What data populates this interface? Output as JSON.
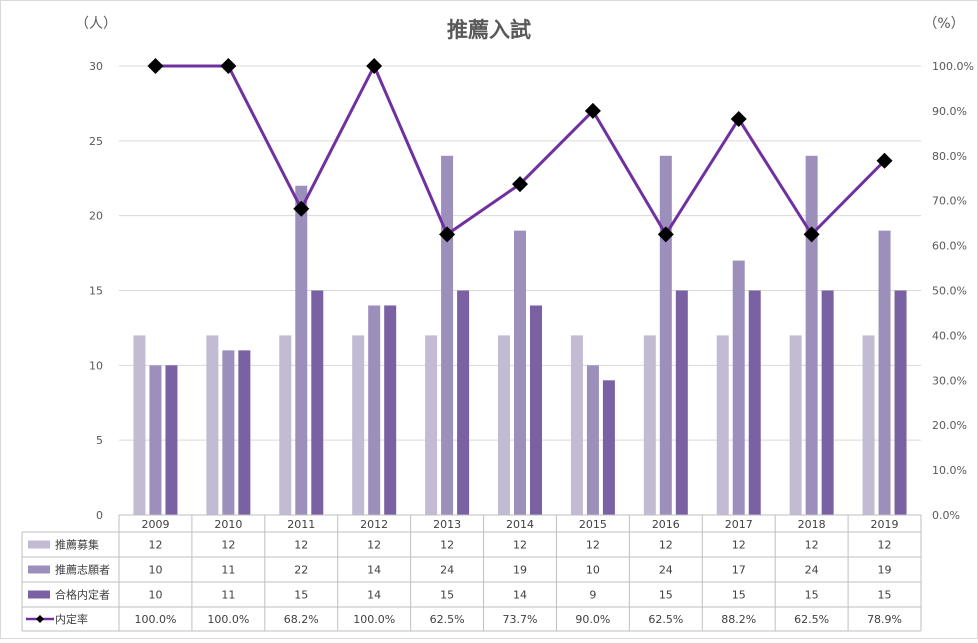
{
  "chart_data": {
    "type": "bar",
    "title": "推薦入試",
    "left_axis_unit": "（人）",
    "right_axis_unit": "（%）",
    "categories": [
      "2009",
      "2010",
      "2011",
      "2012",
      "2013",
      "2014",
      "2015",
      "2016",
      "2017",
      "2018",
      "2019"
    ],
    "ylim": [
      0,
      30
    ],
    "y_ticks": [
      "0",
      "5",
      "10",
      "15",
      "20",
      "25",
      "30"
    ],
    "y2lim": [
      0,
      100
    ],
    "y2_ticks": [
      "0.0%",
      "10.0%",
      "20.0%",
      "30.0%",
      "40.0%",
      "50.0%",
      "60.0%",
      "70.0%",
      "80.0%",
      "90.0%",
      "100.0%"
    ],
    "grid": true,
    "legend": "data-table-left",
    "series": [
      {
        "name": "推薦募集",
        "type": "bar",
        "axis": "left",
        "color": "#c3bad3",
        "values": [
          12,
          12,
          12,
          12,
          12,
          12,
          12,
          12,
          12,
          12,
          12
        ]
      },
      {
        "name": "推薦志願者",
        "type": "bar",
        "axis": "left",
        "color": "#9d8fbb",
        "values": [
          10,
          11,
          22,
          14,
          24,
          19,
          10,
          24,
          17,
          24,
          19
        ]
      },
      {
        "name": "合格内定者",
        "type": "bar",
        "axis": "left",
        "color": "#7a61a3",
        "values": [
          10,
          11,
          15,
          14,
          15,
          14,
          9,
          15,
          15,
          15,
          15
        ]
      },
      {
        "name": "内定率",
        "type": "line",
        "axis": "right",
        "color": "#7030a0",
        "marker_color": "#000000",
        "values": [
          100.0,
          100.0,
          68.2,
          100.0,
          62.5,
          73.7,
          90.0,
          62.5,
          88.2,
          62.5,
          78.9
        ],
        "labels": [
          "100.0%",
          "100.0%",
          "68.2%",
          "100.0%",
          "62.5%",
          "73.7%",
          "90.0%",
          "62.5%",
          "88.2%",
          "62.5%",
          "78.9%"
        ]
      }
    ]
  }
}
